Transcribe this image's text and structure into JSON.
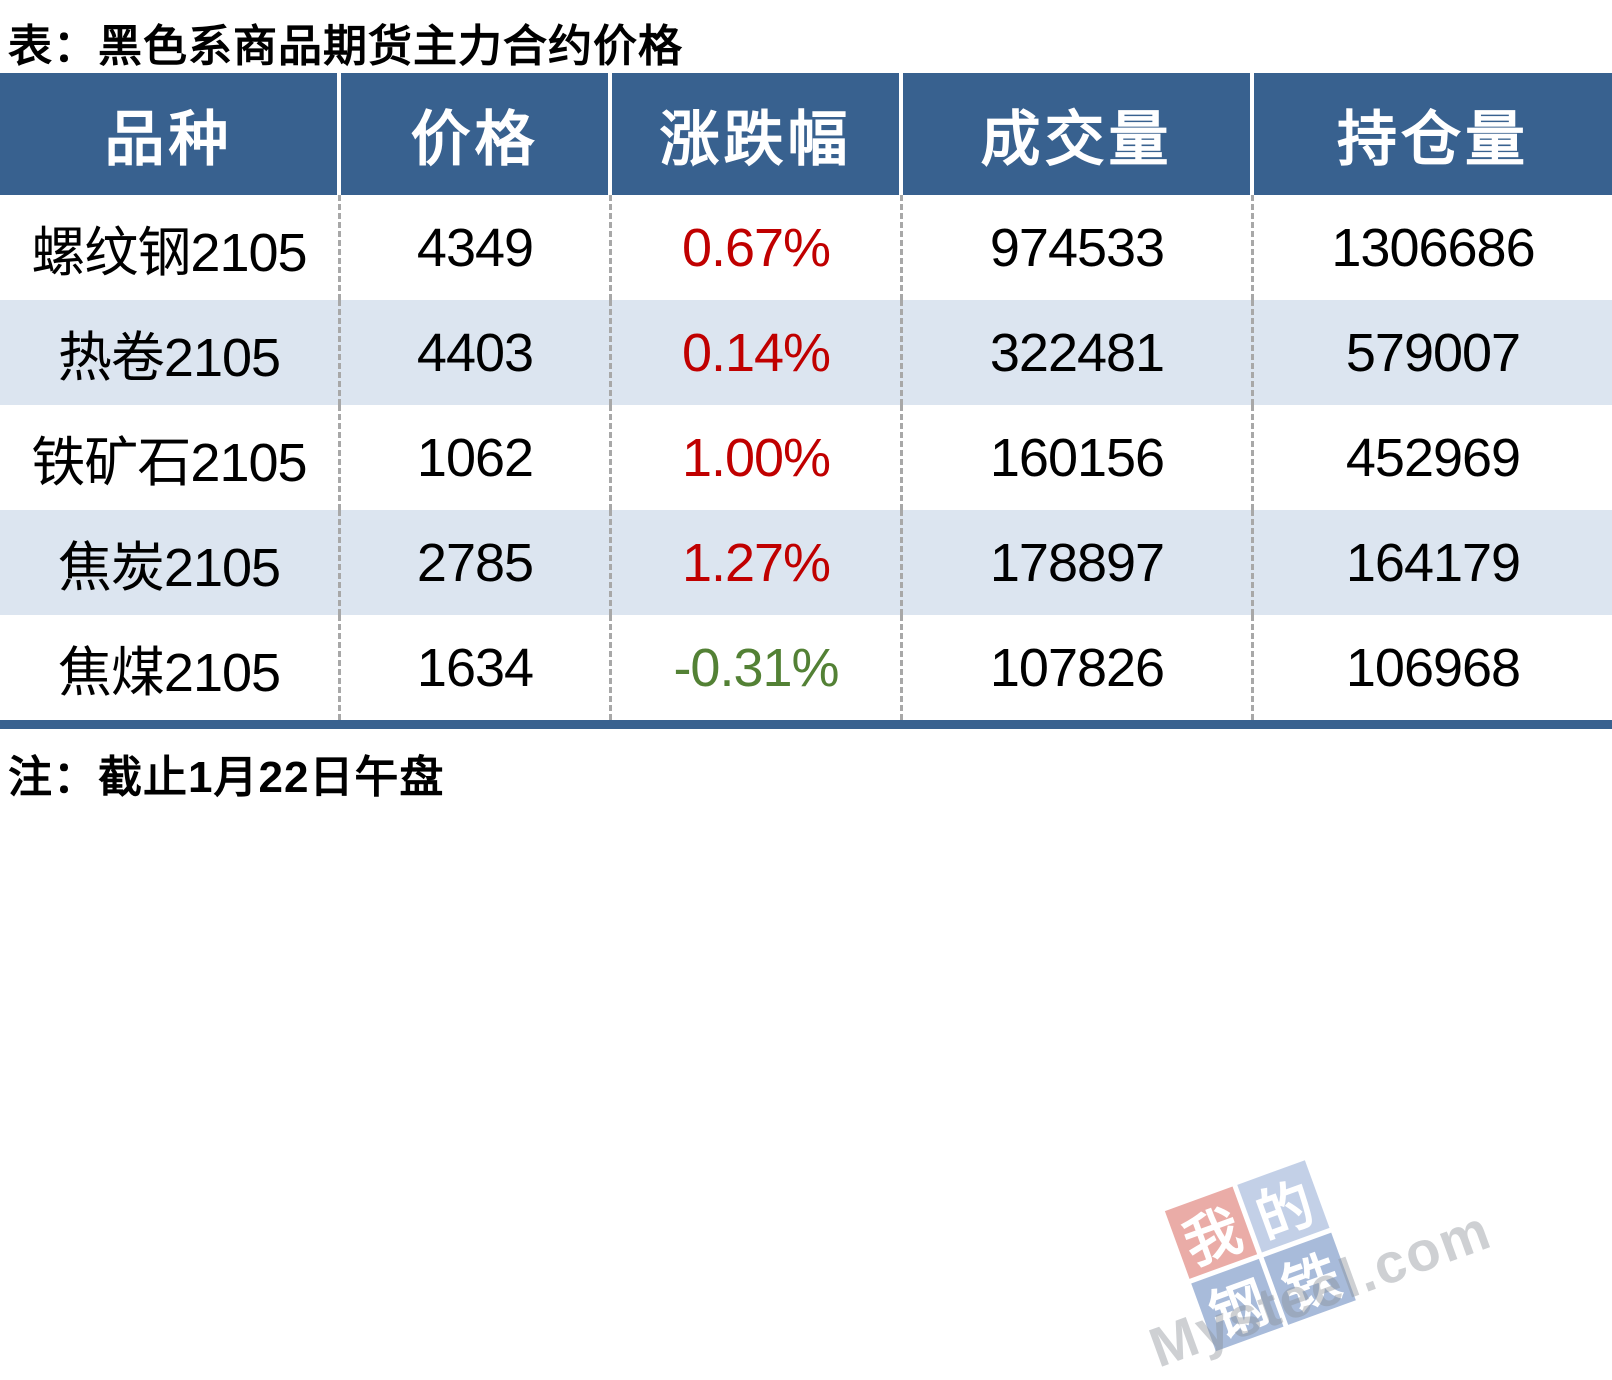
{
  "chart_data": {
    "type": "table",
    "title": "表：黑色系商品期货主力合约价格",
    "columns": [
      "品种",
      "价格",
      "涨跌幅",
      "成交量",
      "持仓量"
    ],
    "rows": [
      {
        "variety": "螺纹钢2105",
        "price": "4349",
        "change": "0.67%",
        "volume": "974533",
        "open_interest": "1306686",
        "direction": "up"
      },
      {
        "variety": "热卷2105",
        "price": "4403",
        "change": "0.14%",
        "volume": "322481",
        "open_interest": "579007",
        "direction": "up"
      },
      {
        "variety": "铁矿石2105",
        "price": "1062",
        "change": "1.00%",
        "volume": "160156",
        "open_interest": "452969",
        "direction": "up"
      },
      {
        "variety": "焦炭2105",
        "price": "2785",
        "change": "1.27%",
        "volume": "178897",
        "open_interest": "164179",
        "direction": "up"
      },
      {
        "variety": "焦煤2105",
        "price": "1634",
        "change": "-0.31%",
        "volume": "107826",
        "open_interest": "106968",
        "direction": "down"
      }
    ],
    "note": "注：截止1月22日午盘"
  },
  "colors": {
    "header_bg": "#38618F",
    "row_alt_bg": "#DCE5F0",
    "bottom_bar": "#38618F",
    "up": "#C00000",
    "down": "#538135"
  },
  "watermark": {
    "tiles": [
      {
        "char": "我",
        "color": "#D14A3D"
      },
      {
        "char": "的",
        "color": "#7C99CC"
      },
      {
        "char": "钢",
        "color": "#3F69AE"
      },
      {
        "char": "铁",
        "color": "#3F69AE"
      }
    ],
    "text": "Mysteel.com"
  }
}
